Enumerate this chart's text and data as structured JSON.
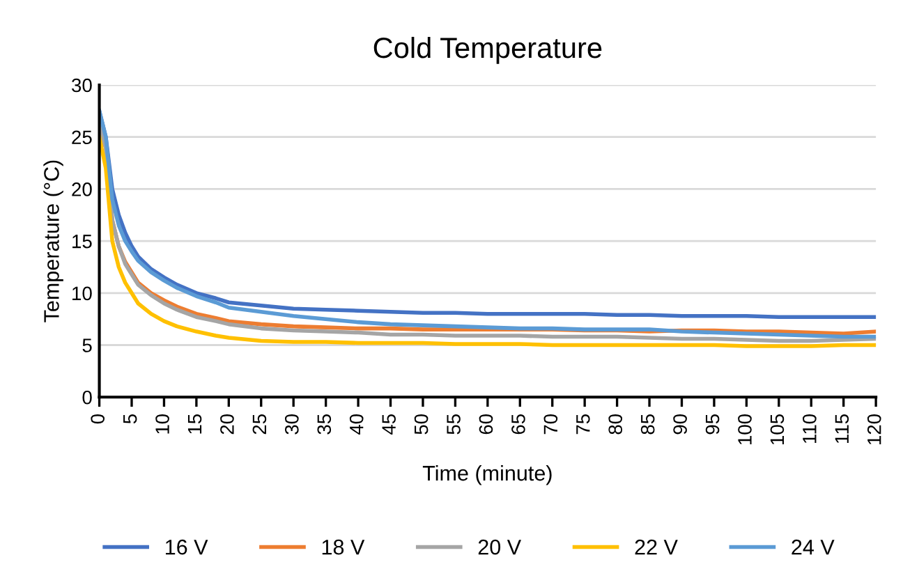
{
  "chart_data": {
    "type": "line",
    "title": "Cold Temperature",
    "xlabel": "Time (minute)",
    "ylabel": "Temperature (°C)",
    "x": [
      0,
      1,
      2,
      3,
      4,
      5,
      6,
      8,
      10,
      12,
      15,
      18,
      20,
      25,
      30,
      35,
      40,
      45,
      50,
      55,
      60,
      65,
      70,
      75,
      80,
      85,
      90,
      95,
      100,
      105,
      110,
      115,
      120
    ],
    "series": [
      {
        "name": "16 V",
        "color": "#4472c4",
        "values": [
          27.5,
          25,
          20,
          17.5,
          15.8,
          14.5,
          13.5,
          12.3,
          11.5,
          10.8,
          10,
          9.5,
          9.1,
          8.8,
          8.5,
          8.4,
          8.3,
          8.2,
          8.1,
          8.1,
          8.0,
          8.0,
          8.0,
          8.0,
          7.9,
          7.9,
          7.8,
          7.8,
          7.8,
          7.7,
          7.7,
          7.7,
          7.7
        ]
      },
      {
        "name": "18 V",
        "color": "#ed7d31",
        "values": [
          25.5,
          24,
          17,
          14.5,
          13,
          12,
          11,
          10,
          9.3,
          8.7,
          8,
          7.6,
          7.3,
          7.0,
          6.8,
          6.7,
          6.6,
          6.6,
          6.5,
          6.5,
          6.5,
          6.5,
          6.5,
          6.4,
          6.4,
          6.3,
          6.4,
          6.4,
          6.3,
          6.3,
          6.2,
          6.1,
          6.3
        ]
      },
      {
        "name": "20 V",
        "color": "#a5a5a5",
        "values": [
          26,
          24,
          17,
          14.5,
          12.8,
          11.8,
          10.8,
          9.8,
          9,
          8.4,
          7.7,
          7.3,
          7,
          6.6,
          6.4,
          6.3,
          6.2,
          6.0,
          6.0,
          5.9,
          5.9,
          5.9,
          5.8,
          5.8,
          5.8,
          5.7,
          5.6,
          5.6,
          5.5,
          5.4,
          5.4,
          5.5,
          5.6
        ]
      },
      {
        "name": "22 V",
        "color": "#ffc000",
        "values": [
          25,
          22,
          15,
          12.5,
          11,
          10,
          9,
          8,
          7.3,
          6.8,
          6.3,
          5.9,
          5.7,
          5.4,
          5.3,
          5.3,
          5.2,
          5.2,
          5.2,
          5.1,
          5.1,
          5.1,
          5.0,
          5.0,
          5.0,
          5.0,
          5.0,
          5.0,
          4.9,
          4.9,
          4.9,
          5.0,
          5.0
        ]
      },
      {
        "name": "24 V",
        "color": "#5b9bd5",
        "values": [
          27.5,
          25,
          19,
          16.5,
          15,
          14,
          13.1,
          12,
          11.2,
          10.5,
          9.7,
          9.1,
          8.6,
          8.2,
          7.8,
          7.5,
          7.2,
          7.0,
          6.9,
          6.8,
          6.7,
          6.6,
          6.6,
          6.5,
          6.5,
          6.5,
          6.3,
          6.2,
          6.1,
          6.0,
          5.9,
          5.8,
          5.8
        ]
      }
    ],
    "xlim": [
      0,
      120
    ],
    "xticks": [
      0,
      5,
      10,
      15,
      20,
      25,
      30,
      35,
      40,
      45,
      50,
      55,
      60,
      65,
      70,
      75,
      80,
      85,
      90,
      95,
      100,
      105,
      110,
      115,
      120
    ],
    "ylim": [
      0,
      30
    ],
    "yticks": [
      0,
      5,
      10,
      15,
      20,
      25,
      30
    ],
    "grid": "y",
    "legend": "bottom",
    "marker": "none",
    "line_style": "solid"
  }
}
